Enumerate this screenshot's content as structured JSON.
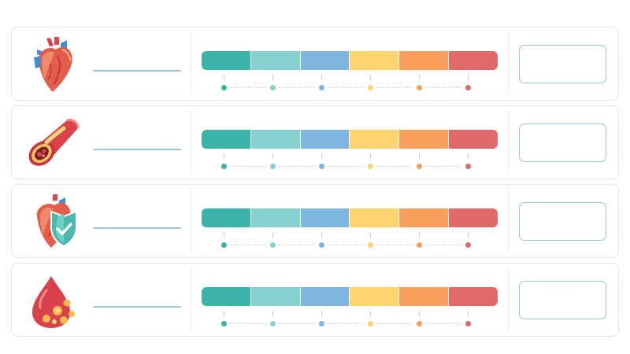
{
  "scale_colors": [
    "#3bb3a8",
    "#84d1cf",
    "#7fb6e0",
    "#fdd46f",
    "#fa9f5c",
    "#e06a6a"
  ],
  "rows": [
    {
      "icon": "anatomical-heart-icon",
      "label": "",
      "value": ""
    },
    {
      "icon": "clogged-artery-icon",
      "label": "",
      "value": ""
    },
    {
      "icon": "heart-shield-icon",
      "label": "",
      "value": ""
    },
    {
      "icon": "blood-drop-cholesterol-icon",
      "label": "",
      "value": ""
    }
  ]
}
